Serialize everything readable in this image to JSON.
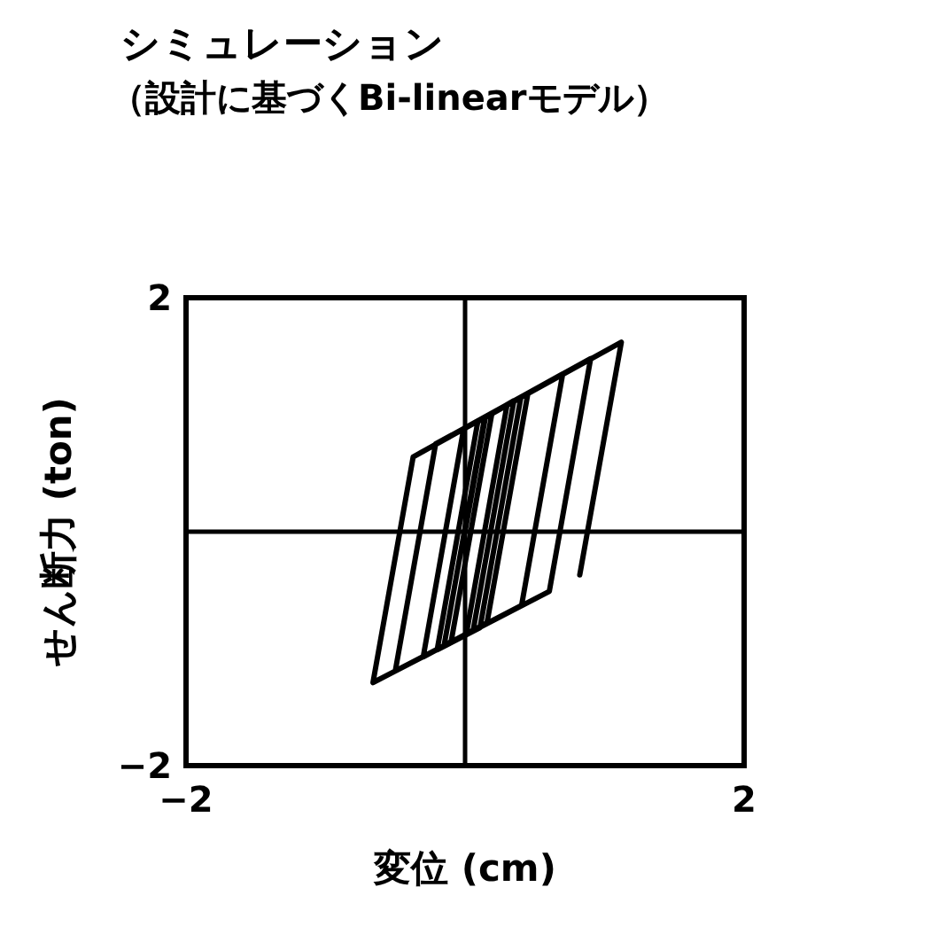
{
  "chart_data": {
    "type": "line",
    "title": "シミュレーション",
    "subtitle": "（設計に基づくBi-linearモデル）",
    "xlabel": "変位 (cm)",
    "ylabel": "せん断力 (ton)",
    "xlim": [
      -2,
      2
    ],
    "ylim": [
      -2,
      2
    ],
    "xticks": [
      -2,
      2
    ],
    "yticks": [
      -2,
      2
    ],
    "grid": false,
    "marker": "none",
    "line_style": "solid",
    "series": [
      {
        "color": "#000000",
        "x": [
          0,
          0.146,
          0.3,
          0.008,
          -0.1,
          0.192,
          0.35,
          0.057,
          -0.15,
          0.141,
          0.4,
          0.107,
          -0.2,
          0.091,
          0.45,
          0.157,
          -0.3,
          -0.01,
          0.7,
          0.405,
          -0.5,
          -0.211,
          0.9,
          0.604,
          -0.66,
          -0.372,
          1.12,
          0.822
        ],
        "values": [
          0,
          0.98,
          1.08,
          -0.88,
          -0.94,
          1.01,
          1.12,
          -0.85,
          -0.97,
          0.98,
          1.15,
          -0.82,
          -1.01,
          0.94,
          1.18,
          -0.78,
          -1.07,
          0.88,
          1.35,
          -0.63,
          -1.19,
          0.75,
          1.48,
          -0.51,
          -1.29,
          0.64,
          1.62,
          -0.37
        ]
      }
    ]
  }
}
